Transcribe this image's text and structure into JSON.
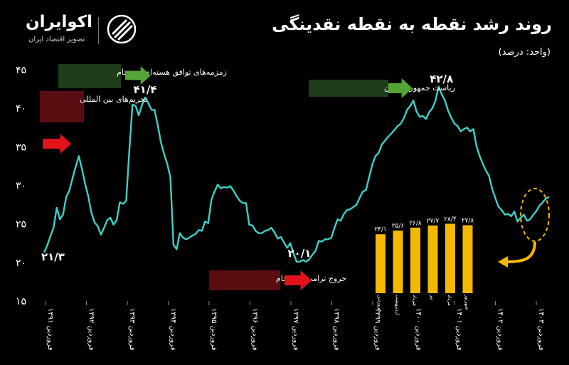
{
  "header": {
    "title": "روند رشد نقطه به نقطه نقدینگی",
    "unit": "(واحد: درصد)"
  },
  "brand": {
    "name": "اکوایران",
    "tagline": "تصویر اقتصاد ایران"
  },
  "colors": {
    "background": "#000000",
    "line": "#3fd0c9",
    "bars": "#f5b800",
    "arrow_red": "#e3131b",
    "arrow_green": "#53a537",
    "label_red_bg": "#5a0d10",
    "label_green_bg": "#1f3d1b",
    "axis_text": "#ffffff"
  },
  "chart_data": [
    {
      "type": "line",
      "y_ticks": [
        "۴۵",
        "۴۰",
        "۳۵",
        "۳۰",
        "۲۵",
        "۲۰",
        "۱۵"
      ],
      "ylim": [
        15,
        45
      ],
      "x_ticks": [
        "فروردین ۱۳۹۱",
        "فروردین ۱۳۹۲",
        "فروردین ۱۳۹۳",
        "فروردین ۱۳۹۴",
        "فروردین ۱۳۹۵",
        "فروردین ۱۳۹۶",
        "فروردین ۱۳۹۷",
        "فروردین ۱۳۹۸",
        "فروردین ۱۳۹۹",
        "فروردین ۱۴۰۰",
        "فروردین ۱۴۰۱",
        "فروردین ۱۴۰۲",
        "فروردین ۱۴۰۳"
      ],
      "series": [
        {
          "values": [
            21.3,
            22.2,
            23.4,
            24.5,
            27.1,
            25.6,
            26.2,
            28.5,
            29.3,
            30.9,
            32.4,
            33.8,
            32.1,
            30.2,
            28.6,
            26.4,
            25.2,
            24.7,
            23.6,
            24.5,
            25.5,
            25.8,
            24.9,
            25.5,
            27.8,
            27.6,
            28.0,
            34.5,
            40.5,
            40.3,
            39.1,
            40.4,
            41.4,
            40.7,
            39.8,
            39.8,
            37.8,
            35.6,
            34.1,
            32.8,
            31.1,
            22.3,
            21.7,
            23.8,
            23.2,
            23.0,
            23.2,
            23.5,
            23.7,
            24.2,
            24.1,
            25.3,
            25.1,
            28.1,
            29.2,
            30.1,
            29.6,
            29.8,
            29.7,
            29.9,
            29.3,
            28.6,
            28.0,
            27.7,
            27.7,
            24.9,
            24.8,
            24.1,
            23.8,
            23.8,
            24.1,
            24.2,
            24.5,
            23.9,
            23.1,
            23.3,
            22.6,
            21.9,
            22.5,
            21.2,
            20.1,
            20.1,
            20.3,
            20.1,
            20.4,
            21.0,
            21.5,
            22.8,
            22.7,
            23.0,
            23.0,
            23.2,
            24.5,
            25.6,
            25.4,
            26.3,
            26.8,
            26.9,
            27.2,
            27.5,
            28.4,
            29.2,
            29.4,
            31.1,
            32.7,
            33.8,
            34.2,
            35.3,
            35.8,
            36.3,
            36.7,
            37.2,
            37.7,
            38.0,
            38.7,
            39.8,
            40.3,
            41.0,
            39.6,
            38.9,
            39.0,
            38.6,
            39.5,
            40.0,
            41.0,
            42.8,
            41.8,
            41.0,
            39.7,
            38.8,
            38.0,
            37.7,
            37.0,
            37.3,
            37.5,
            37.0,
            37.3,
            35.1,
            33.8,
            32.8,
            31.9,
            31.2,
            29.5,
            28.3,
            27.2,
            26.8,
            26.2,
            26.3,
            26.0,
            26.6,
            25.3,
            25.8,
            26.2,
            25.4,
            25.6,
            26.2,
            26.7,
            27.4,
            27.8,
            28.3,
            28.5
          ]
        }
      ],
      "annotations": [
        {
          "label": "۲۱/۳"
        },
        {
          "label": "۴۱/۴"
        },
        {
          "label": "۲۰/۱"
        },
        {
          "label": "۴۲/۸"
        },
        {
          "label": "تحریم‌های بین المللی"
        },
        {
          "label": "زمزمه‌های توافق هسته‌ای و برجام"
        },
        {
          "label": "خروج ترامپ از برجام"
        },
        {
          "label": "ریاست جمهوری بایدن"
        }
      ]
    },
    {
      "type": "bar",
      "categories": [
        "فروردین",
        "اردیبهشت",
        "خرداد",
        "تیر",
        "مرداد",
        "شهریور"
      ],
      "values": [
        24.1,
        25.6,
        26.8,
        27.7,
        28.4,
        27.8
      ],
      "value_labels": [
        "۲۴/۱",
        "۲۵/۶",
        "۲۶/۸",
        "۲۷/۷",
        "۲۸/۴",
        "۲۷/۸"
      ]
    }
  ]
}
